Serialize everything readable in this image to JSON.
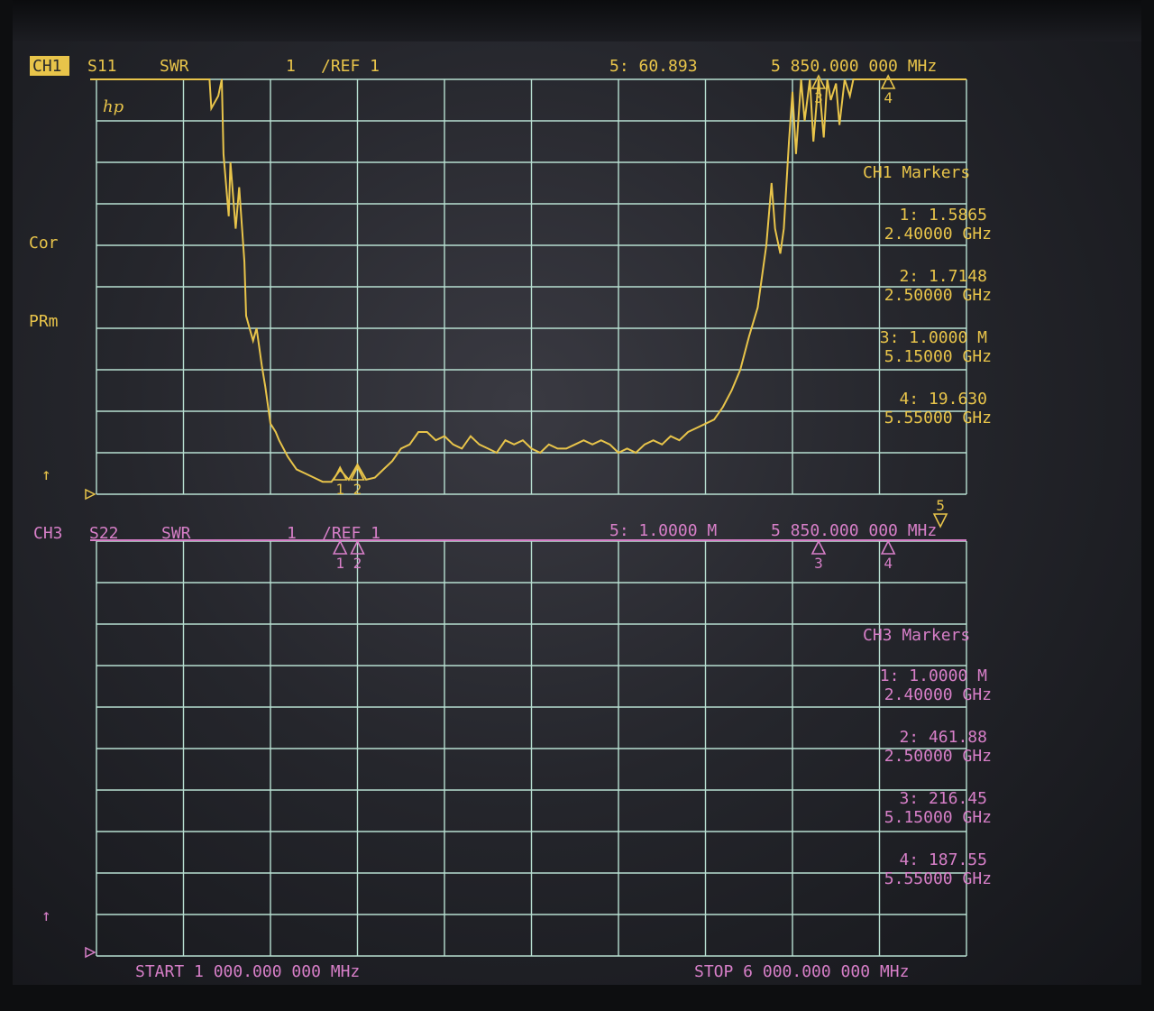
{
  "colors": {
    "ch1": "#e8c44a",
    "ch3": "#d77fc8",
    "grid": "#b8e0d2",
    "status": "#e8c44a"
  },
  "ch1": {
    "channel_label": "CH1",
    "param": "S11",
    "format": "SWR",
    "scale": "1",
    "ref": "/REF 1",
    "active_marker": "5: 60.893",
    "active_marker_freq": "5 850.000 000 MHz",
    "markers_title": "CH1 Markers",
    "markers": [
      {
        "value": "1: 1.5865",
        "freq": "2.40000 GHz"
      },
      {
        "value": "2: 1.7148",
        "freq": "2.50000 GHz"
      },
      {
        "value": "3: 1.0000 M",
        "freq": "5.15000 GHz"
      },
      {
        "value": "4: 19.630",
        "freq": "5.55000 GHz"
      }
    ],
    "marker_ids": [
      "1",
      "2",
      "3",
      "4"
    ],
    "logo": "hp"
  },
  "ch3": {
    "channel_label": "CH3",
    "param": "S22",
    "format": "SWR",
    "scale": "1",
    "ref": "/REF 1",
    "active_marker": "5: 1.0000 M",
    "active_marker_freq": "5 850.000 000 MHz",
    "markers_title": "CH3 Markers",
    "markers": [
      {
        "value": "1: 1.0000 M",
        "freq": "2.40000 GHz"
      },
      {
        "value": "2: 461.88",
        "freq": "2.50000 GHz"
      },
      {
        "value": "3: 216.45",
        "freq": "5.15000 GHz"
      },
      {
        "value": "4: 187.55",
        "freq": "5.55000 GHz"
      }
    ],
    "marker_ids": [
      "1",
      "2",
      "3",
      "4",
      "5"
    ]
  },
  "annotations": {
    "cor": "Cor",
    "prm": "PRm",
    "arrow": "↑"
  },
  "sweep": {
    "start": "START 1 000.000 000 MHz",
    "stop": "STOP 6 000.000 000 MHz"
  },
  "chart_data": {
    "type": "line",
    "x_unit": "GHz",
    "xlim": [
      1.0,
      6.0
    ],
    "ylim": [
      1,
      11
    ],
    "series": [
      {
        "x": [
          1.0,
          1.65,
          1.66,
          1.7,
          1.72,
          1.73,
          1.76,
          1.77,
          1.8,
          1.82,
          1.85,
          1.86,
          1.88,
          1.9,
          1.92,
          1.95,
          1.97,
          2.0,
          2.03,
          2.05,
          2.1,
          2.15,
          2.2,
          2.25,
          2.3,
          2.35,
          2.4,
          2.45,
          2.5,
          2.55,
          2.6,
          2.65,
          2.7,
          2.75,
          2.8,
          2.85,
          2.9,
          2.95,
          3.0,
          3.05,
          3.1,
          3.15,
          3.2,
          3.25,
          3.3,
          3.35,
          3.4,
          3.45,
          3.5,
          3.55,
          3.6,
          3.65,
          3.7,
          3.75,
          3.8,
          3.85,
          3.9,
          3.95,
          4.0,
          4.05,
          4.1,
          4.15,
          4.2,
          4.25,
          4.3,
          4.35,
          4.4,
          4.45,
          4.5,
          4.55,
          4.6,
          4.65,
          4.7,
          4.75,
          4.8,
          4.85,
          4.88,
          4.9,
          4.93,
          4.95,
          4.98,
          5.0,
          5.02,
          5.05,
          5.07,
          5.1,
          5.12,
          5.15,
          5.18,
          5.2,
          5.22,
          5.25,
          5.27,
          5.3,
          5.33,
          5.35,
          6.0
        ],
        "y": [
          11.0,
          11.0,
          10.3,
          10.6,
          11.0,
          9.2,
          7.7,
          9.0,
          7.4,
          8.4,
          6.6,
          5.3,
          5.0,
          4.7,
          5.0,
          4.1,
          3.6,
          2.7,
          2.5,
          2.3,
          1.9,
          1.6,
          1.5,
          1.4,
          1.3,
          1.3,
          1.5865,
          1.35,
          1.7148,
          1.35,
          1.4,
          1.6,
          1.8,
          2.1,
          2.2,
          2.5,
          2.5,
          2.3,
          2.4,
          2.2,
          2.1,
          2.4,
          2.2,
          2.1,
          2.0,
          2.3,
          2.2,
          2.3,
          2.1,
          2.0,
          2.2,
          2.1,
          2.1,
          2.2,
          2.3,
          2.2,
          2.3,
          2.2,
          2.0,
          2.1,
          2.0,
          2.2,
          2.3,
          2.2,
          2.4,
          2.3,
          2.5,
          2.6,
          2.7,
          2.8,
          3.1,
          3.5,
          4.0,
          4.8,
          5.5,
          7.0,
          8.5,
          7.4,
          6.8,
          7.4,
          9.5,
          10.7,
          9.2,
          11.0,
          10.0,
          11.0,
          9.5,
          11.0,
          9.6,
          11.0,
          10.5,
          10.9,
          9.9,
          11.0,
          10.6,
          11.0,
          11.0
        ]
      }
    ]
  }
}
